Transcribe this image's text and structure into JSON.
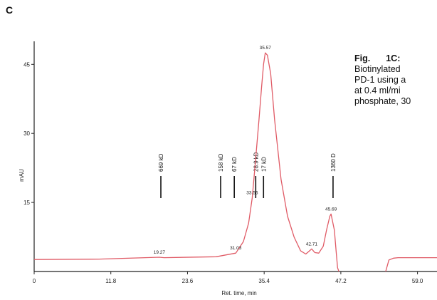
{
  "panel_label": "C",
  "caption": {
    "title_parts": [
      "Fig.",
      "1C:"
    ],
    "lines": [
      "Biotinylated",
      "PD-1 using a",
      "at 0.4 ml/mi",
      "phosphate, 30"
    ]
  },
  "chart_data": {
    "type": "line",
    "title": "",
    "xlabel": "Ret. time, min",
    "ylabel": "mAU",
    "xlim": [
      0,
      62
    ],
    "ylim": [
      0,
      50
    ],
    "xticks": [
      "0",
      "11.8",
      "23.6",
      "35.4",
      "47.2",
      "59.0"
    ],
    "xtick_values": [
      0,
      11.8,
      23.6,
      35.4,
      47.2,
      59.0
    ],
    "yticks": [
      "15",
      "30",
      "45"
    ],
    "ytick_values": [
      15,
      30,
      45
    ],
    "line_color": "#e05b66",
    "series": [
      {
        "x": [
          0,
          10,
          19.27,
          20,
          28,
          31.03,
          32.2,
          33.0,
          33.56,
          34.0,
          34.6,
          35.0,
          35.3,
          35.57,
          35.9,
          36.4,
          37.0,
          38.0,
          39.0,
          40.0,
          41.0,
          41.8,
          42.3,
          42.71,
          43.2,
          43.8,
          44.5,
          45.0,
          45.5,
          45.69,
          46.2,
          46.5,
          46.7,
          46.9
        ],
        "y": [
          2.6,
          2.7,
          3.1,
          3.0,
          3.2,
          4.0,
          6.5,
          10.5,
          16.0,
          23.0,
          33.0,
          40.0,
          45.0,
          47.5,
          47.0,
          43.0,
          33.0,
          20.0,
          12.0,
          7.5,
          4.5,
          3.8,
          4.4,
          4.9,
          4.1,
          4.0,
          5.5,
          9.0,
          12.0,
          12.5,
          9.0,
          4.0,
          0.8,
          0.0
        ]
      },
      {
        "x": [
          54.1,
          54.6,
          55.3,
          56.0,
          60.0,
          62.0
        ],
        "y": [
          0.0,
          2.5,
          2.9,
          3.0,
          3.0,
          3.0
        ]
      }
    ],
    "peak_labels": [
      {
        "x": 19.27,
        "y": 3.1,
        "text": "19.27"
      },
      {
        "x": 31.03,
        "y": 4.0,
        "text": "31.03"
      },
      {
        "x": 33.56,
        "y": 16.0,
        "text": "33.56"
      },
      {
        "x": 35.57,
        "y": 47.5,
        "text": "35.57"
      },
      {
        "x": 42.71,
        "y": 4.9,
        "text": "42.71"
      },
      {
        "x": 45.69,
        "y": 12.5,
        "text": "45.69"
      }
    ],
    "standards": [
      {
        "x": 19.5,
        "text": "669 kD"
      },
      {
        "x": 28.7,
        "text": "158 kD"
      },
      {
        "x": 30.8,
        "text": "67 kD"
      },
      {
        "x": 34.1,
        "text": "28.9 kD"
      },
      {
        "x": 35.3,
        "text": "17 kD"
      },
      {
        "x": 46.0,
        "text": "1360 D"
      }
    ]
  }
}
